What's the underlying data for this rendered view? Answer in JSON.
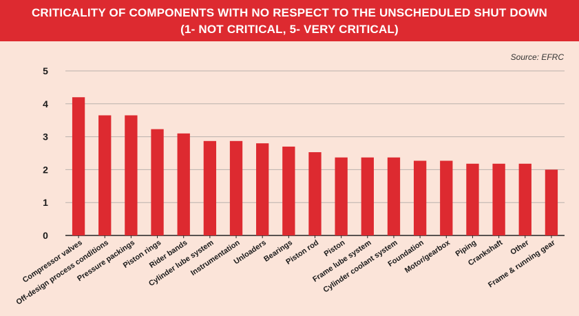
{
  "header": {
    "title_line1": "CRITICALITY OF COMPONENTS WITH NO RESPECT TO THE UNSCHEDULED SHUT DOWN",
    "title_line2": "(1- NOT CRITICAL, 5- VERY CRITICAL)",
    "source": "Source: EFRC"
  },
  "colors": {
    "banner": "#dd2a30",
    "bar": "#dd2a30",
    "background": "#fbe4d9",
    "grid": "#b9b0ac",
    "axis": "#222222"
  },
  "chart_data": {
    "type": "bar",
    "title": "CRITICALITY OF COMPONENTS WITH NO RESPECT TO THE UNSCHEDULED SHUT DOWN",
    "subtitle": "(1- NOT CRITICAL, 5- VERY CRITICAL)",
    "source": "Source: EFRC",
    "categories": [
      "Compressor valves",
      "Off-design process conditions",
      "Pressure packings",
      "Piston rings",
      "Rider bands",
      "Cylinder lube system",
      "Instrumentation",
      "Unloaders",
      "Bearings",
      "Piston rod",
      "Piston",
      "Frame lube system",
      "Cylinder coolant system",
      "Foundation",
      "Motor/gearbox",
      "Piping",
      "Crankshaft",
      "Other",
      "Frame & running gear"
    ],
    "values": [
      4.2,
      3.65,
      3.65,
      3.23,
      3.1,
      2.87,
      2.87,
      2.8,
      2.7,
      2.53,
      2.37,
      2.37,
      2.37,
      2.27,
      2.27,
      2.18,
      2.18,
      2.18,
      2.0
    ],
    "yticks": [
      0,
      1,
      2,
      3,
      4,
      5
    ],
    "ylim": [
      0,
      5
    ],
    "grid": true,
    "xlabel": "",
    "ylabel": ""
  }
}
